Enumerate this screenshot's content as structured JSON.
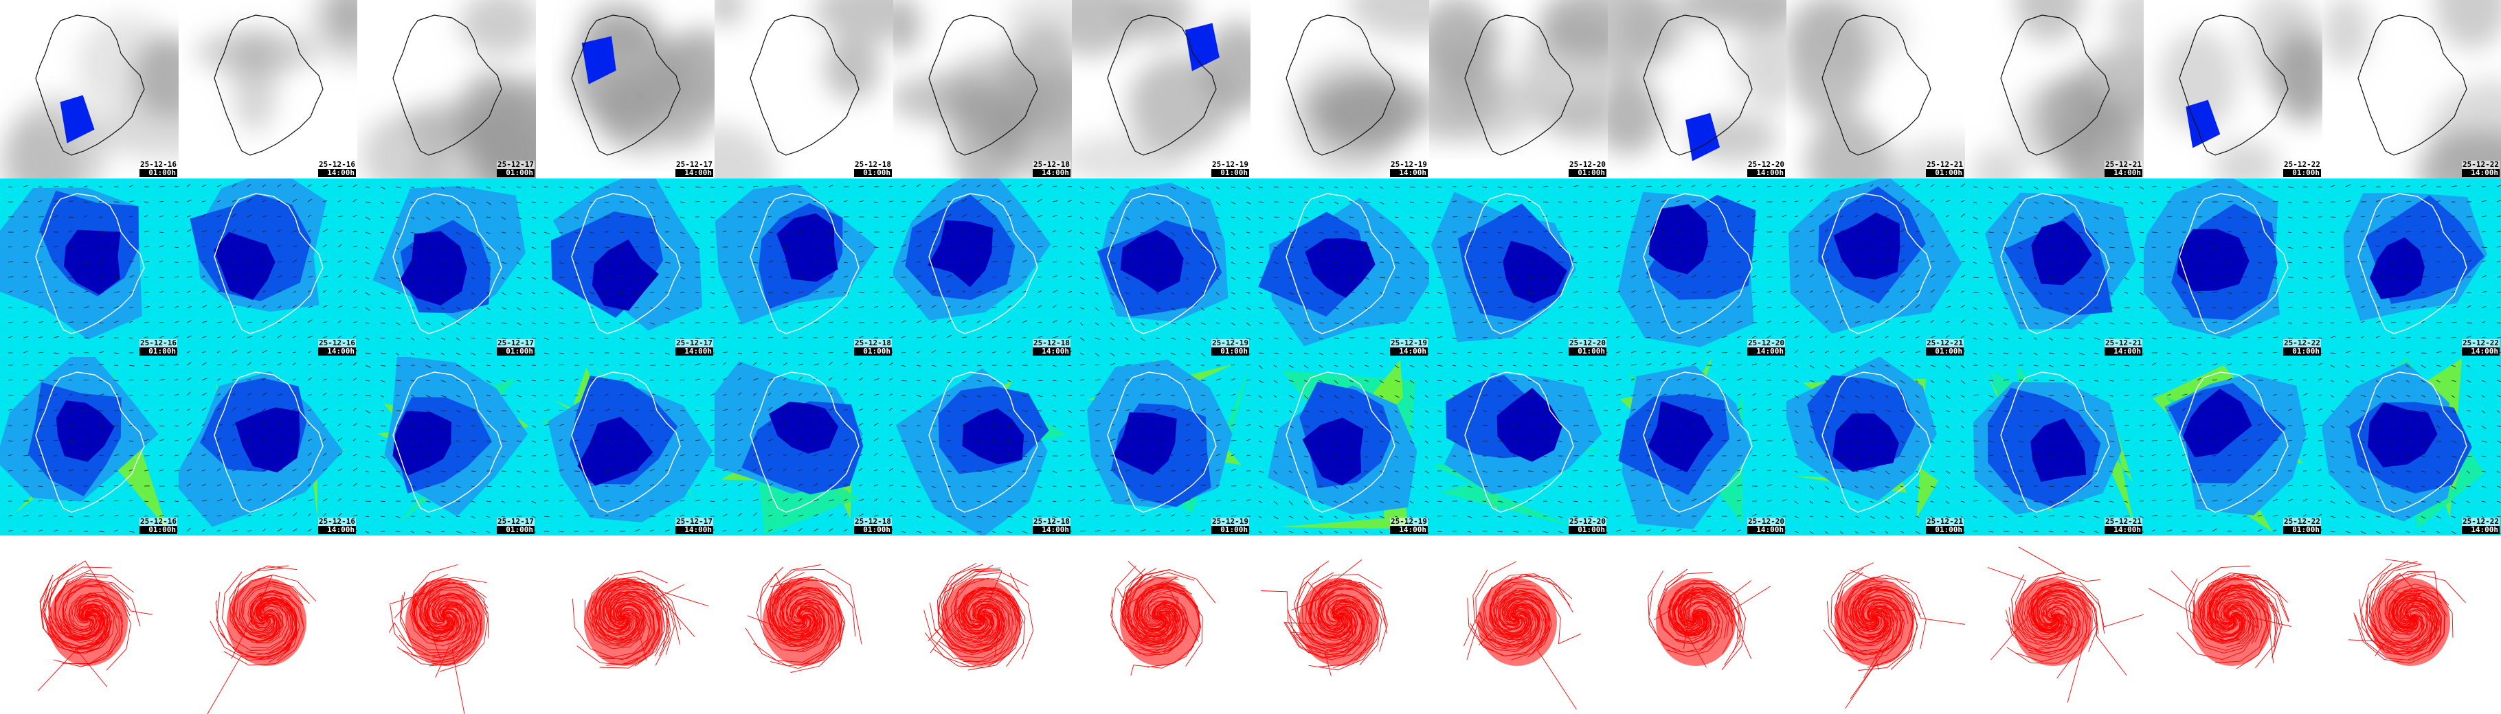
{
  "panels": {
    "columns": [
      {
        "date": "25-12-16",
        "time": "01:00h"
      },
      {
        "date": "25-12-16",
        "time": "14:00h"
      },
      {
        "date": "25-12-17",
        "time": "01:00h"
      },
      {
        "date": "25-12-17",
        "time": "14:00h"
      },
      {
        "date": "25-12-18",
        "time": "01:00h"
      },
      {
        "date": "25-12-18",
        "time": "14:00h"
      },
      {
        "date": "25-12-19",
        "time": "01:00h"
      },
      {
        "date": "25-12-19",
        "time": "14:00h"
      },
      {
        "date": "25-12-20",
        "time": "01:00h"
      },
      {
        "date": "25-12-20",
        "time": "14:00h"
      },
      {
        "date": "25-12-21",
        "time": "01:00h"
      },
      {
        "date": "25-12-21",
        "time": "14:00h"
      },
      {
        "date": "25-12-22",
        "time": "01:00h"
      },
      {
        "date": "25-12-22",
        "time": "14:00h"
      }
    ],
    "rows": [
      {
        "id": "clouds-precip",
        "stamped": true
      },
      {
        "id": "wind-low",
        "stamped": true
      },
      {
        "id": "wind-high",
        "stamped": true
      },
      {
        "id": "trajectories",
        "stamped": false
      }
    ]
  },
  "colors": {
    "background": "#ffffff",
    "cloud_grey": "#9a9a9a",
    "precip_blue": "#0022ee",
    "wind_dark": "#0000bb",
    "wind_mid": "#0a55e8",
    "wind_light": "#1aa5f0",
    "wind_cyan": "#00e6f0",
    "wind_green": "#19ee9a",
    "wind_lime": "#7ef02a",
    "coast": "#ffffff",
    "trajectory": "#ff0000"
  }
}
